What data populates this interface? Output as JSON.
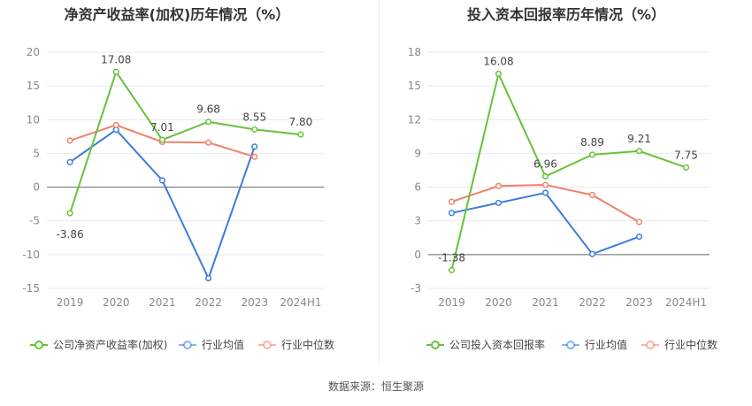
{
  "colors": {
    "company": "#67c23a",
    "industry_avg": "#3b7ddd",
    "industry_median": "#f0826a",
    "axis_text": "#888888",
    "grid": "#e9e9e9",
    "title": "#333333"
  },
  "source_text": "数据来源：恒生聚源",
  "chart_data": [
    {
      "type": "line",
      "title": "净资产收益率(加权)历年情况（%）",
      "categories": [
        "2019",
        "2020",
        "2021",
        "2022",
        "2023",
        "2024H1"
      ],
      "ylim": [
        -15,
        20
      ],
      "yticks": [
        -15,
        -10,
        -5,
        0,
        5,
        10,
        15,
        20
      ],
      "ytick_labels": [
        "-15",
        "-10",
        "-5",
        "0",
        "5",
        "10",
        "15",
        "20"
      ],
      "grid": true,
      "legend_position": "bottom-left",
      "series": [
        {
          "name": "公司净资产收益率(加权)",
          "color_key": "company",
          "values": [
            -3.86,
            17.08,
            7.01,
            9.68,
            8.55,
            7.8
          ],
          "labels": [
            "-3.86",
            "17.08",
            "7.01",
            "9.68",
            "8.55",
            "7.80"
          ]
        },
        {
          "name": "行业均值",
          "color_key": "industry_avg",
          "values": [
            3.7,
            8.5,
            1.0,
            -13.5,
            6.0,
            null
          ]
        },
        {
          "name": "行业中位数",
          "color_key": "industry_median",
          "values": [
            6.9,
            9.2,
            6.7,
            6.6,
            4.5,
            null
          ]
        }
      ]
    },
    {
      "type": "line",
      "title": "投入资本回报率历年情况（%）",
      "categories": [
        "2019",
        "2020",
        "2021",
        "2022",
        "2023",
        "2024H1"
      ],
      "ylim": [
        -3,
        18
      ],
      "yticks": [
        -3,
        0,
        3,
        6,
        9,
        12,
        15,
        18
      ],
      "ytick_labels": [
        "-3",
        "0",
        "3",
        "6",
        "9",
        "12",
        "15",
        "18"
      ],
      "grid": true,
      "legend_position": "bottom-left",
      "series": [
        {
          "name": "公司投入资本回报率",
          "color_key": "company",
          "values": [
            -1.38,
            16.08,
            6.96,
            8.89,
            9.21,
            7.75
          ],
          "labels": [
            "-1.38",
            "16.08",
            "6.96",
            "8.89",
            "9.21",
            "7.75"
          ]
        },
        {
          "name": "行业均值",
          "color_key": "industry_avg",
          "values": [
            3.7,
            4.6,
            5.5,
            0.05,
            1.6,
            null
          ]
        },
        {
          "name": "行业中位数",
          "color_key": "industry_median",
          "values": [
            4.7,
            6.1,
            6.2,
            5.3,
            2.9,
            null
          ]
        }
      ]
    }
  ]
}
